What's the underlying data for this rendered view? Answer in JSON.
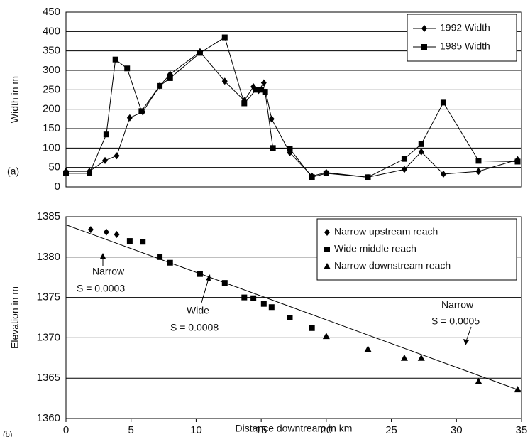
{
  "chart_data": [
    {
      "type": "line",
      "ylabel": "Width in m",
      "panel_label": "(a)",
      "xlim": [
        0,
        35
      ],
      "ylim": [
        0,
        450
      ],
      "yticks": [
        0,
        50,
        100,
        150,
        200,
        250,
        300,
        350,
        400,
        450
      ],
      "grid": true,
      "legend": "upper right",
      "series": [
        {
          "name": "1992 Width",
          "color": "#000000",
          "marker": "diamond",
          "x": [
            0,
            1.8,
            3,
            3.9,
            4.9,
            5.9,
            7.2,
            8,
            10.3,
            12.2,
            13.7,
            14.4,
            14.8,
            15.2,
            15.8,
            17.2,
            18.9,
            20,
            23.2,
            26,
            27.3,
            29,
            31.7,
            34.7
          ],
          "values": [
            40,
            40,
            68,
            80,
            178,
            193,
            260,
            290,
            348,
            272,
            222,
            258,
            248,
            268,
            175,
            88,
            28,
            37,
            25,
            45,
            90,
            33,
            40,
            70
          ]
        },
        {
          "name": "1985 Width",
          "color": "#000000",
          "marker": "square",
          "x": [
            0,
            1.8,
            3.1,
            3.8,
            4.7,
            5.8,
            7.2,
            8,
            10.3,
            12.2,
            13.7,
            14.6,
            15,
            15.3,
            15.9,
            17.2,
            18.9,
            20,
            23.2,
            26,
            27.3,
            29,
            31.7,
            34.7
          ],
          "values": [
            35,
            35,
            135,
            328,
            305,
            195,
            260,
            280,
            345,
            385,
            215,
            250,
            250,
            245,
            100,
            98,
            25,
            35,
            25,
            72,
            110,
            217,
            67,
            65
          ]
        }
      ]
    },
    {
      "type": "scatter",
      "ylabel": "Elevation in m",
      "xlabel": "Distance downtream in km",
      "panel_label": "(b)",
      "xlim": [
        0,
        35
      ],
      "xticks": [
        0,
        5,
        10,
        15,
        20,
        25,
        30,
        35
      ],
      "ylim": [
        1360,
        1385
      ],
      "yticks": [
        1360,
        1365,
        1370,
        1375,
        1380,
        1385
      ],
      "grid": true,
      "legend": "upper right",
      "series": [
        {
          "name": "Narrow upstream reach",
          "color": "#000000",
          "marker": "diamond",
          "x": [
            1.9,
            3.1,
            3.9
          ],
          "values": [
            1383.4,
            1383.1,
            1382.8
          ]
        },
        {
          "name": "Wide middle reach",
          "color": "#000000",
          "marker": "square",
          "x": [
            4.9,
            5.9,
            7.2,
            8,
            10.3,
            12.2,
            13.7,
            14.4,
            15.2,
            15.8,
            17.2,
            18.9
          ],
          "values": [
            1382,
            1381.9,
            1380,
            1379.3,
            1377.9,
            1376.8,
            1375,
            1374.9,
            1374.2,
            1373.8,
            1372.5,
            1371.2
          ]
        },
        {
          "name": "Narrow downstream reach",
          "color": "#000000",
          "marker": "triangle",
          "x": [
            20,
            23.2,
            26,
            27.3,
            31.7,
            34.7
          ],
          "values": [
            1370.2,
            1368.6,
            1367.5,
            1367.5,
            1364.6,
            1363.6
          ]
        }
      ],
      "trend_line": {
        "x": [
          0,
          35
        ],
        "values": [
          1384,
          1363.4
        ]
      },
      "annotations": [
        {
          "text": "Narrow",
          "slope": "S = 0.0003"
        },
        {
          "text": "Wide",
          "slope": "S = 0.0008"
        },
        {
          "text": "Narrow",
          "slope": "S = 0.0005"
        }
      ]
    }
  ]
}
